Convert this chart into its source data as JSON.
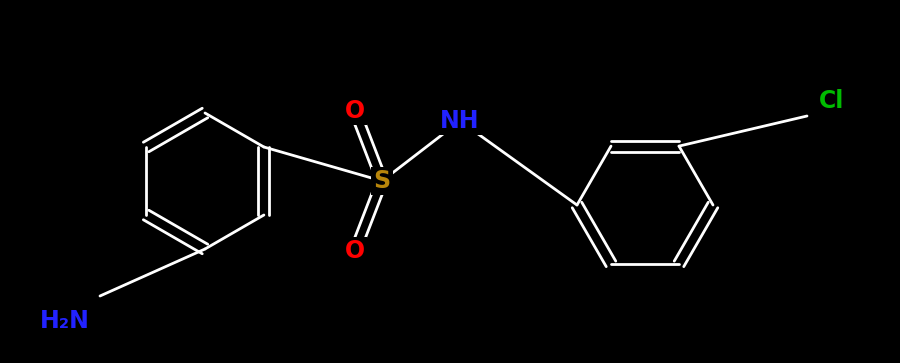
{
  "bg_color": "#000000",
  "bond_color": "#ffffff",
  "atom_colors": {
    "O": "#ff0000",
    "S": "#b8860b",
    "Cl": "#00bb00",
    "NH": "#2222ff",
    "H2N": "#2222ff"
  },
  "figsize": [
    9.0,
    3.63
  ],
  "dpi": 100,
  "lw": 2.0,
  "font_size": 17,
  "ring_r": 0.68
}
